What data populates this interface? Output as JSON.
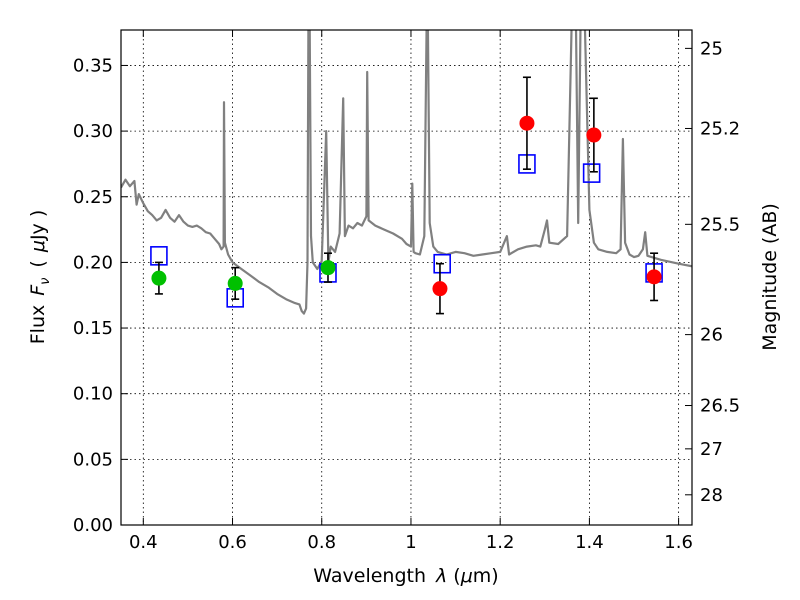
{
  "chart_data": {
    "type": "scatter",
    "xlabel_prefix": "Wavelength",
    "xlabel_symbol": "λ",
    "xlabel_unit_open": "(",
    "xlabel_unit_mu": "μ",
    "xlabel_unit_rest": "m)",
    "ylabel_prefix": "Flux",
    "ylabel_symbol": "F",
    "ylabel_subscript": "ν",
    "ylabel_unit_open": "(",
    "ylabel_unit_mu": "μ",
    "ylabel_unit_rest": "Jy )",
    "y2label": "Magnitude (AB)",
    "xlim": [
      0.35,
      1.63
    ],
    "ylim": [
      0.0,
      0.377
    ],
    "grid": true,
    "x_ticks": [
      0.4,
      0.6,
      0.8,
      1.0,
      1.2,
      1.4,
      1.6
    ],
    "x_tick_labels": [
      "0.4",
      "0.6",
      "0.8",
      "1",
      "1.2",
      "1.4",
      "1.6"
    ],
    "y_ticks": [
      0.0,
      0.05,
      0.1,
      0.15,
      0.2,
      0.25,
      0.3,
      0.35
    ],
    "y_tick_labels": [
      "0.00",
      "0.05",
      "0.10",
      "0.15",
      "0.20",
      "0.25",
      "0.30",
      "0.35"
    ],
    "y2_ticks": [
      {
        "label": "25",
        "flux": 0.363
      },
      {
        "label": "25.2",
        "flux": 0.302
      },
      {
        "label": "25.5",
        "flux": 0.229
      },
      {
        "label": "26",
        "flux": 0.145
      },
      {
        "label": "26.5",
        "flux": 0.091
      },
      {
        "label": "27",
        "flux": 0.058
      },
      {
        "label": "28",
        "flux": 0.023
      }
    ],
    "colors": {
      "template": "#808080",
      "optical": "#00c000",
      "infrared": "#ff0000",
      "model": "#0000ff",
      "errorbar": "#000000"
    },
    "series": [
      {
        "kind": "template-spectrum",
        "points": [
          [
            0.35,
            0.257
          ],
          [
            0.36,
            0.263
          ],
          [
            0.37,
            0.258
          ],
          [
            0.38,
            0.262
          ],
          [
            0.385,
            0.244
          ],
          [
            0.39,
            0.252
          ],
          [
            0.4,
            0.245
          ],
          [
            0.41,
            0.239
          ],
          [
            0.42,
            0.236
          ],
          [
            0.43,
            0.232
          ],
          [
            0.44,
            0.234
          ],
          [
            0.45,
            0.24
          ],
          [
            0.46,
            0.234
          ],
          [
            0.47,
            0.231
          ],
          [
            0.48,
            0.236
          ],
          [
            0.49,
            0.231
          ],
          [
            0.5,
            0.228
          ],
          [
            0.51,
            0.227
          ],
          [
            0.52,
            0.228
          ],
          [
            0.53,
            0.226
          ],
          [
            0.54,
            0.223
          ],
          [
            0.55,
            0.222
          ],
          [
            0.56,
            0.218
          ],
          [
            0.57,
            0.214
          ],
          [
            0.575,
            0.21
          ],
          [
            0.58,
            0.212
          ],
          [
            0.581,
            0.322
          ],
          [
            0.583,
            0.215
          ],
          [
            0.59,
            0.206
          ],
          [
            0.6,
            0.2
          ],
          [
            0.62,
            0.195
          ],
          [
            0.64,
            0.19
          ],
          [
            0.66,
            0.185
          ],
          [
            0.68,
            0.181
          ],
          [
            0.7,
            0.176
          ],
          [
            0.72,
            0.172
          ],
          [
            0.74,
            0.169
          ],
          [
            0.75,
            0.168
          ],
          [
            0.755,
            0.163
          ],
          [
            0.76,
            0.161
          ],
          [
            0.765,
            0.165
          ],
          [
            0.768,
            0.2
          ],
          [
            0.77,
            0.38
          ],
          [
            0.773,
            0.38
          ],
          [
            0.776,
            0.22
          ],
          [
            0.78,
            0.2
          ],
          [
            0.79,
            0.195
          ],
          [
            0.8,
            0.201
          ],
          [
            0.81,
            0.3
          ],
          [
            0.815,
            0.2
          ],
          [
            0.82,
            0.212
          ],
          [
            0.83,
            0.208
          ],
          [
            0.84,
            0.222
          ],
          [
            0.848,
            0.325
          ],
          [
            0.852,
            0.22
          ],
          [
            0.86,
            0.228
          ],
          [
            0.87,
            0.226
          ],
          [
            0.88,
            0.23
          ],
          [
            0.89,
            0.228
          ],
          [
            0.9,
            0.235
          ],
          [
            0.902,
            0.345
          ],
          [
            0.905,
            0.232
          ],
          [
            0.92,
            0.228
          ],
          [
            0.94,
            0.225
          ],
          [
            0.96,
            0.222
          ],
          [
            0.98,
            0.218
          ],
          [
            0.99,
            0.214
          ],
          [
            1.0,
            0.212
          ],
          [
            1.003,
            0.26
          ],
          [
            1.006,
            0.208
          ],
          [
            1.01,
            0.207
          ],
          [
            1.02,
            0.206
          ],
          [
            1.03,
            0.22
          ],
          [
            1.035,
            0.38
          ],
          [
            1.038,
            0.38
          ],
          [
            1.042,
            0.23
          ],
          [
            1.05,
            0.212
          ],
          [
            1.06,
            0.208
          ],
          [
            1.08,
            0.206
          ],
          [
            1.1,
            0.208
          ],
          [
            1.12,
            0.207
          ],
          [
            1.14,
            0.205
          ],
          [
            1.16,
            0.206
          ],
          [
            1.18,
            0.207
          ],
          [
            1.2,
            0.208
          ],
          [
            1.215,
            0.22
          ],
          [
            1.22,
            0.206
          ],
          [
            1.24,
            0.21
          ],
          [
            1.26,
            0.212
          ],
          [
            1.28,
            0.213
          ],
          [
            1.29,
            0.212
          ],
          [
            1.3,
            0.225
          ],
          [
            1.305,
            0.232
          ],
          [
            1.31,
            0.215
          ],
          [
            1.33,
            0.214
          ],
          [
            1.35,
            0.22
          ],
          [
            1.36,
            0.38
          ],
          [
            1.37,
            0.38
          ],
          [
            1.375,
            0.23
          ],
          [
            1.38,
            0.38
          ],
          [
            1.39,
            0.38
          ],
          [
            1.4,
            0.24
          ],
          [
            1.41,
            0.215
          ],
          [
            1.42,
            0.21
          ],
          [
            1.44,
            0.208
          ],
          [
            1.46,
            0.207
          ],
          [
            1.47,
            0.21
          ],
          [
            1.475,
            0.294
          ],
          [
            1.48,
            0.215
          ],
          [
            1.49,
            0.206
          ],
          [
            1.5,
            0.204
          ],
          [
            1.51,
            0.205
          ],
          [
            1.52,
            0.21
          ],
          [
            1.525,
            0.223
          ],
          [
            1.53,
            0.205
          ],
          [
            1.56,
            0.202
          ],
          [
            1.6,
            0.199
          ],
          [
            1.63,
            0.197
          ]
        ]
      },
      {
        "kind": "observed-optical",
        "points": [
          {
            "x": 0.435,
            "y": 0.188,
            "err": 0.012
          },
          {
            "x": 0.606,
            "y": 0.184,
            "err": 0.012
          },
          {
            "x": 0.814,
            "y": 0.196,
            "err": 0.011
          }
        ]
      },
      {
        "kind": "observed-infrared",
        "points": [
          {
            "x": 1.065,
            "y": 0.18,
            "err": 0.019
          },
          {
            "x": 1.26,
            "y": 0.306,
            "err": 0.035
          },
          {
            "x": 1.41,
            "y": 0.297,
            "err": 0.028
          },
          {
            "x": 1.545,
            "y": 0.189,
            "err": 0.018
          }
        ]
      },
      {
        "kind": "model-photometry",
        "points": [
          {
            "x": 0.435,
            "y": 0.205
          },
          {
            "x": 0.606,
            "y": 0.173
          },
          {
            "x": 0.814,
            "y": 0.192
          },
          {
            "x": 1.07,
            "y": 0.199
          },
          {
            "x": 1.26,
            "y": 0.275
          },
          {
            "x": 1.405,
            "y": 0.268
          },
          {
            "x": 1.545,
            "y": 0.192
          }
        ]
      }
    ]
  }
}
